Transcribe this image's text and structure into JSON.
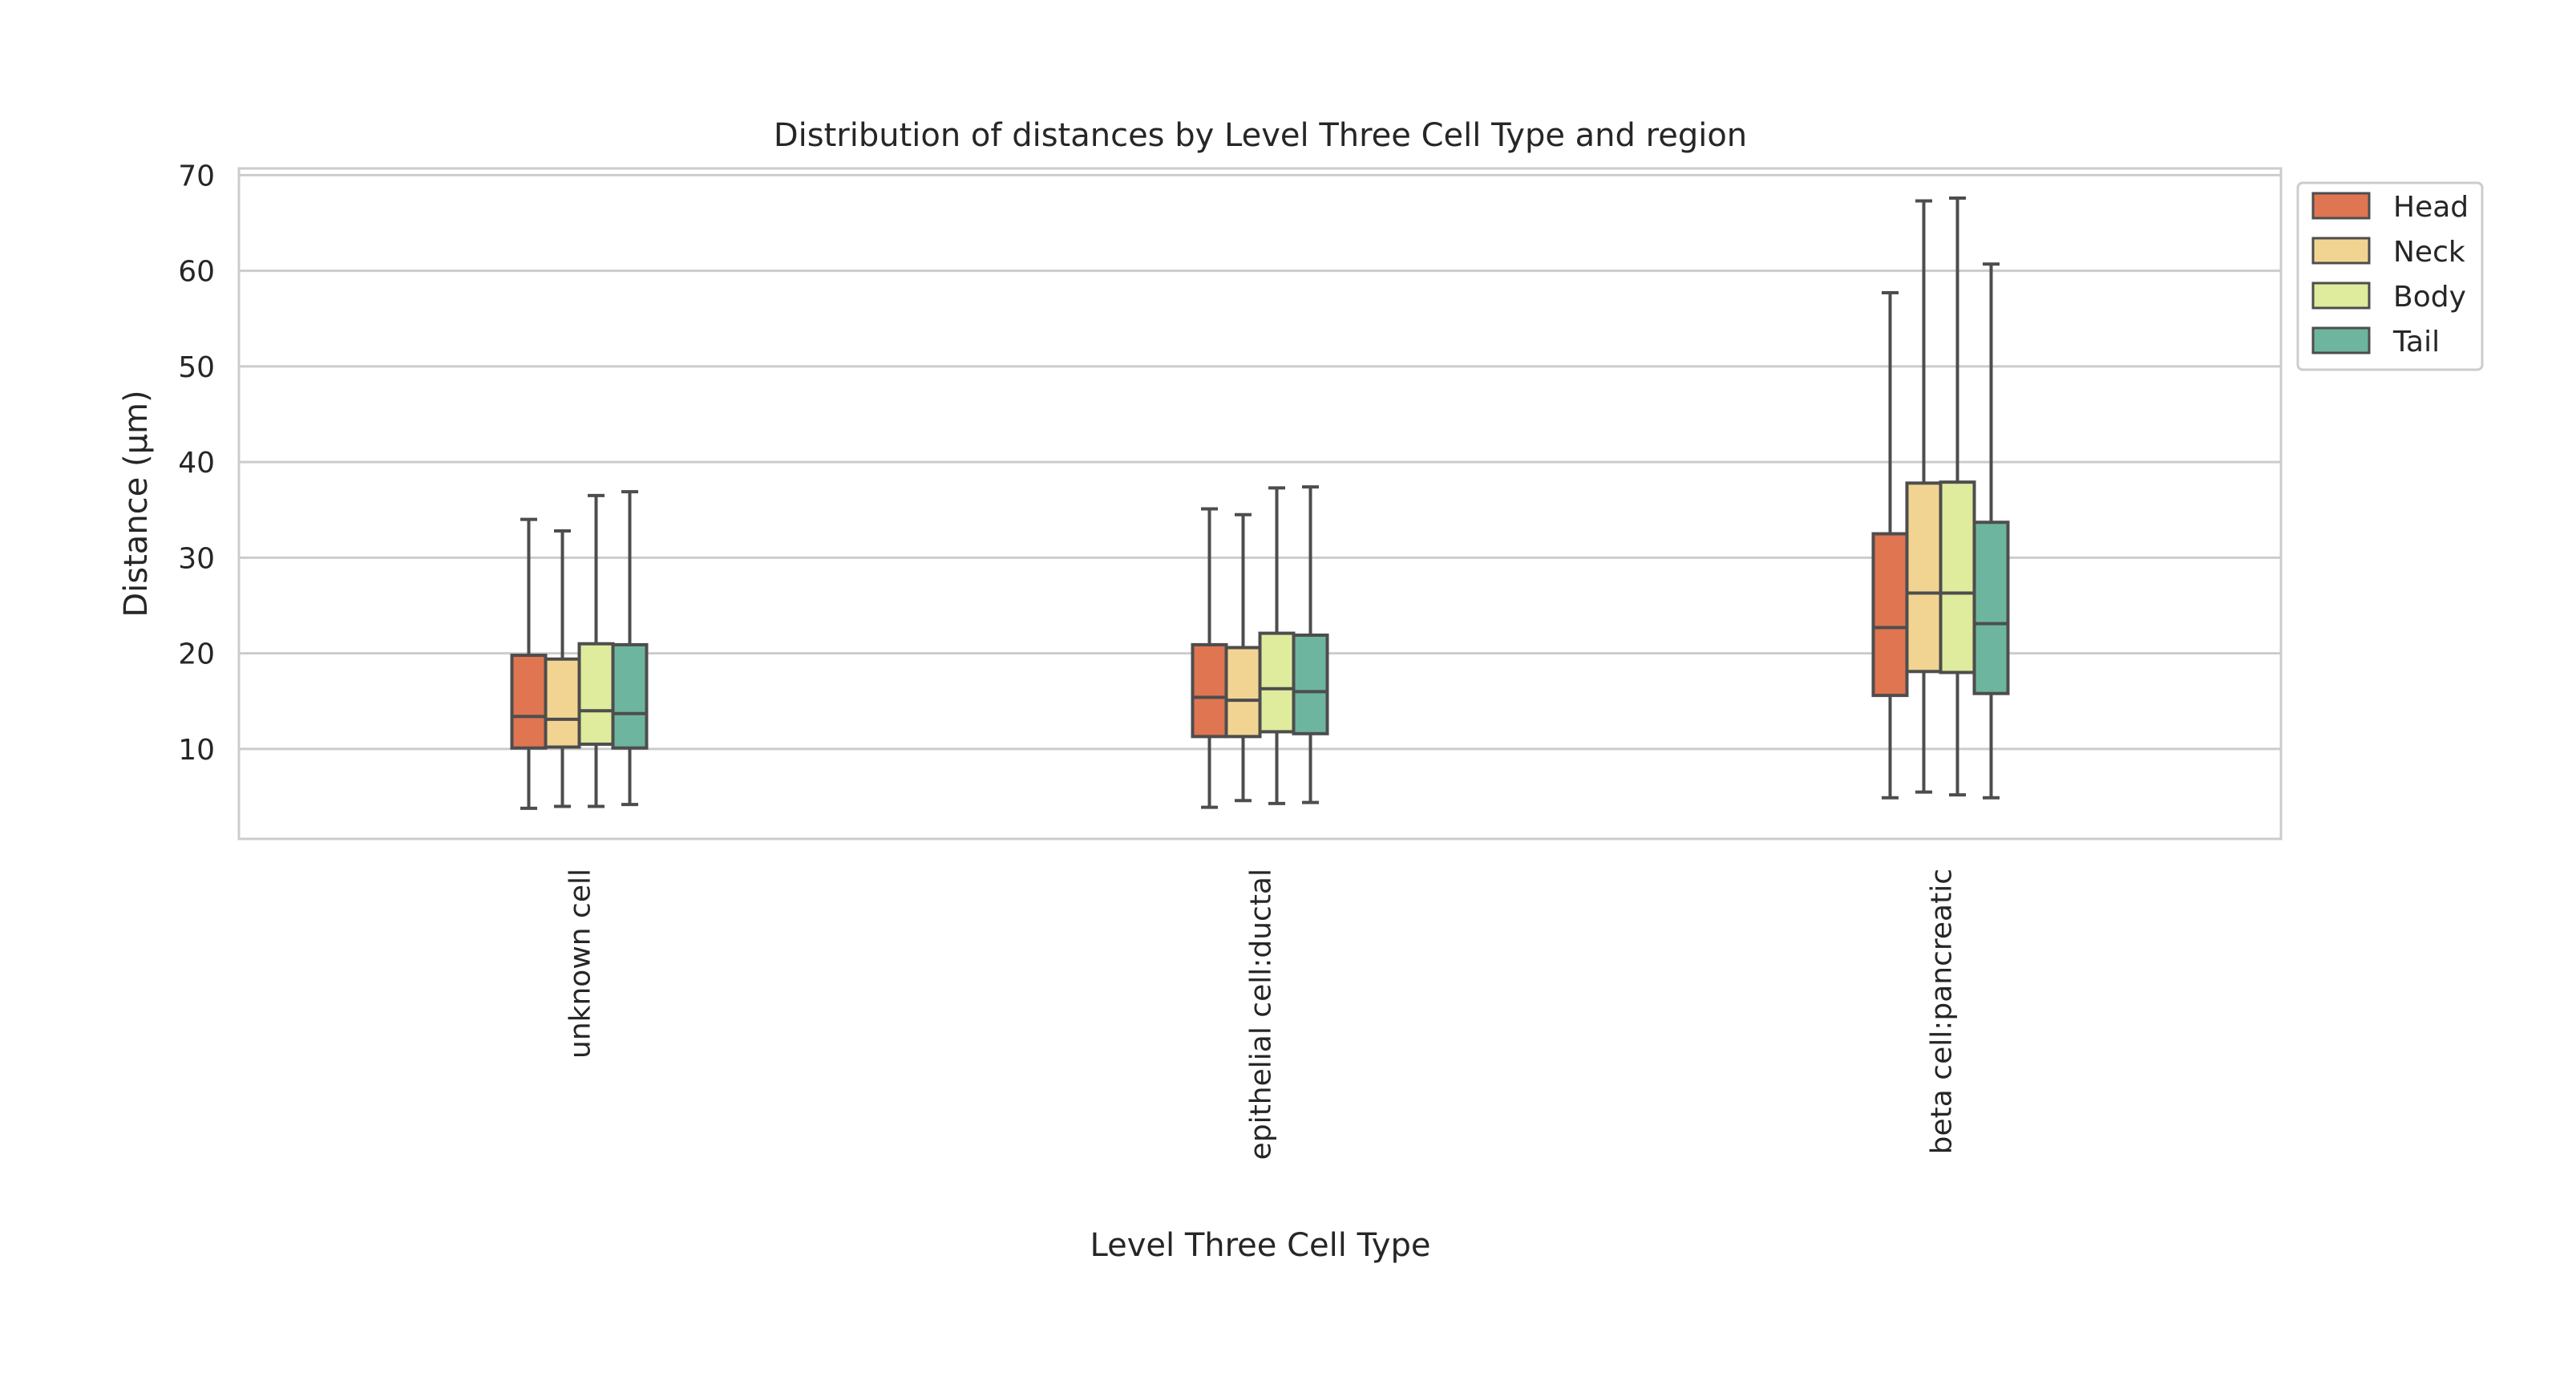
{
  "chart_data": {
    "type": "boxplot",
    "title": "Distribution of distances by Level Three Cell Type and region",
    "xlabel": "Level Three Cell Type",
    "ylabel": "Distance (µm)",
    "ylim": [
      0.6,
      70.7
    ],
    "yticks": [
      10,
      20,
      30,
      40,
      50,
      60,
      70
    ],
    "grid": true,
    "legend_position": "upper-right-outside",
    "categories": [
      "unknown cell",
      "epithelial cell:ductal",
      "beta cell:pancreatic"
    ],
    "series": [
      {
        "name": "Head",
        "color": "#e07552",
        "boxes": [
          {
            "whislo": 3.8,
            "q1": 10.1,
            "med": 13.4,
            "q3": 19.8,
            "whishi": 34.0
          },
          {
            "whislo": 3.9,
            "q1": 11.3,
            "med": 15.4,
            "q3": 20.9,
            "whishi": 35.1
          },
          {
            "whislo": 4.9,
            "q1": 15.6,
            "med": 22.7,
            "q3": 32.5,
            "whishi": 57.7
          }
        ]
      },
      {
        "name": "Neck",
        "color": "#f2d492",
        "boxes": [
          {
            "whislo": 4.0,
            "q1": 10.2,
            "med": 13.1,
            "q3": 19.4,
            "whishi": 32.8
          },
          {
            "whislo": 4.6,
            "q1": 11.3,
            "med": 15.1,
            "q3": 20.6,
            "whishi": 34.5
          },
          {
            "whislo": 5.5,
            "q1": 18.1,
            "med": 26.3,
            "q3": 37.8,
            "whishi": 67.3
          }
        ]
      },
      {
        "name": "Body",
        "color": "#dfeb9d",
        "boxes": [
          {
            "whislo": 4.0,
            "q1": 10.5,
            "med": 14.0,
            "q3": 21.0,
            "whishi": 36.5
          },
          {
            "whislo": 4.3,
            "q1": 11.8,
            "med": 16.3,
            "q3": 22.1,
            "whishi": 37.3
          },
          {
            "whislo": 5.2,
            "q1": 18.0,
            "med": 26.3,
            "q3": 37.9,
            "whishi": 67.6
          }
        ]
      },
      {
        "name": "Tail",
        "color": "#6db59e",
        "boxes": [
          {
            "whislo": 4.2,
            "q1": 10.1,
            "med": 13.7,
            "q3": 20.9,
            "whishi": 36.9
          },
          {
            "whislo": 4.4,
            "q1": 11.6,
            "med": 16.0,
            "q3": 21.9,
            "whishi": 37.4
          },
          {
            "whislo": 4.9,
            "q1": 15.8,
            "med": 23.1,
            "q3": 33.7,
            "whishi": 60.7
          }
        ]
      }
    ]
  }
}
